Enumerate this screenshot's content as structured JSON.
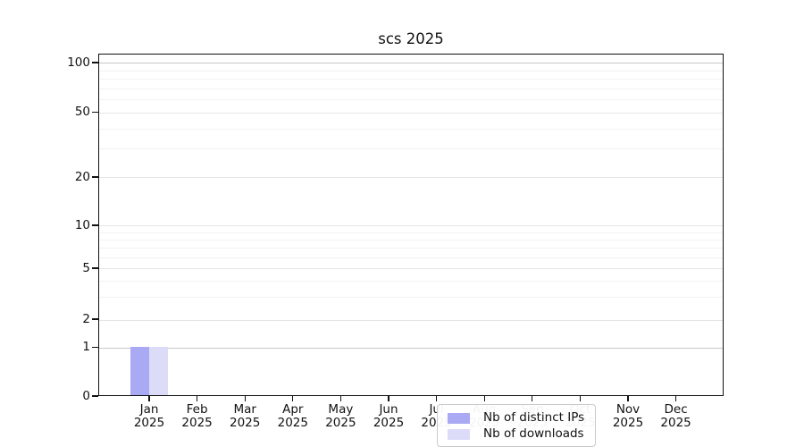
{
  "chart_data": {
    "type": "bar",
    "title": "scs 2025",
    "categories": [
      "Jan 2025",
      "Feb 2025",
      "Mar 2025",
      "Apr 2025",
      "May 2025",
      "Jun 2025",
      "Jul 2025",
      "Aug 2025",
      "Sep 2025",
      "Oct 2025",
      "Nov 2025",
      "Dec 2025"
    ],
    "series": [
      {
        "name": "Nb of distinct IPs",
        "color": "#a9a9f4",
        "values": [
          1,
          0,
          0,
          0,
          0,
          0,
          0,
          0,
          0,
          0,
          0,
          0
        ]
      },
      {
        "name": "Nb of downloads",
        "color": "#dcdcf8",
        "values": [
          1,
          0,
          0,
          0,
          0,
          0,
          0,
          0,
          0,
          0,
          0,
          0
        ]
      }
    ],
    "xlabel": "",
    "ylabel": "",
    "yscale": "log-like (linear segment below 1)",
    "yticks": [
      0,
      1,
      2,
      5,
      10,
      20,
      50,
      100
    ],
    "yticks_minor": [
      90,
      80,
      70,
      60,
      40,
      30,
      9,
      8,
      7,
      6,
      4,
      3
    ],
    "ylim": [
      0,
      110
    ],
    "grid": true,
    "legend_position": "lower center inside plot",
    "colors": {
      "axis": "#111111",
      "grid_major_strong": "#c8c8c8",
      "grid_major": "#e6e6e6",
      "grid_minor": "#f2f2f2"
    }
  }
}
